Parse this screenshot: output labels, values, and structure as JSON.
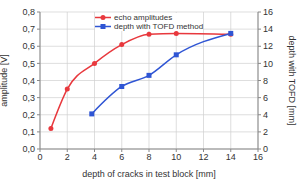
{
  "chart_data": {
    "type": "line",
    "x_label": "depth of cracks in test block [mm]",
    "y_label": "amplitude [V]",
    "y2_label": "depth with TOFD [mm]",
    "xlim": [
      0,
      16
    ],
    "xticks": [
      0,
      2,
      4,
      6,
      8,
      10,
      12,
      14,
      16
    ],
    "ylim": [
      0,
      0.8
    ],
    "yticks": [
      {
        "value": 0,
        "label": "0,0"
      },
      {
        "value": 0.1,
        "label": "0,1"
      },
      {
        "value": 0.2,
        "label": "0,2"
      },
      {
        "value": 0.3,
        "label": "0,3"
      },
      {
        "value": 0.4,
        "label": "0,4"
      },
      {
        "value": 0.5,
        "label": "0,5"
      },
      {
        "value": 0.6,
        "label": "0,6"
      },
      {
        "value": 0.7,
        "label": "0,7"
      },
      {
        "value": 0.8,
        "label": "0,8"
      }
    ],
    "y2lim": [
      0,
      16
    ],
    "y2ticks": [
      0,
      2,
      4,
      6,
      8,
      10,
      12,
      14,
      16
    ],
    "grid": true,
    "legend": "upper center",
    "series": [
      {
        "name": "echo amplitudes",
        "color": "#e8383d",
        "marker": "circle",
        "line_style": "solid",
        "x": [
          0.8,
          2,
          4,
          6,
          8,
          10,
          14
        ],
        "values": [
          0.12,
          0.35,
          0.5,
          0.61,
          0.67,
          0.675,
          0.67
        ]
      },
      {
        "name": "depth with TOFD method",
        "color": "#2f55d4",
        "marker": "square",
        "line_style": "solid",
        "axis": "y2",
        "x": [
          3.8,
          6,
          8,
          10,
          14
        ],
        "values": [
          4.1,
          7.3,
          8.6,
          11,
          13.5
        ]
      }
    ]
  }
}
